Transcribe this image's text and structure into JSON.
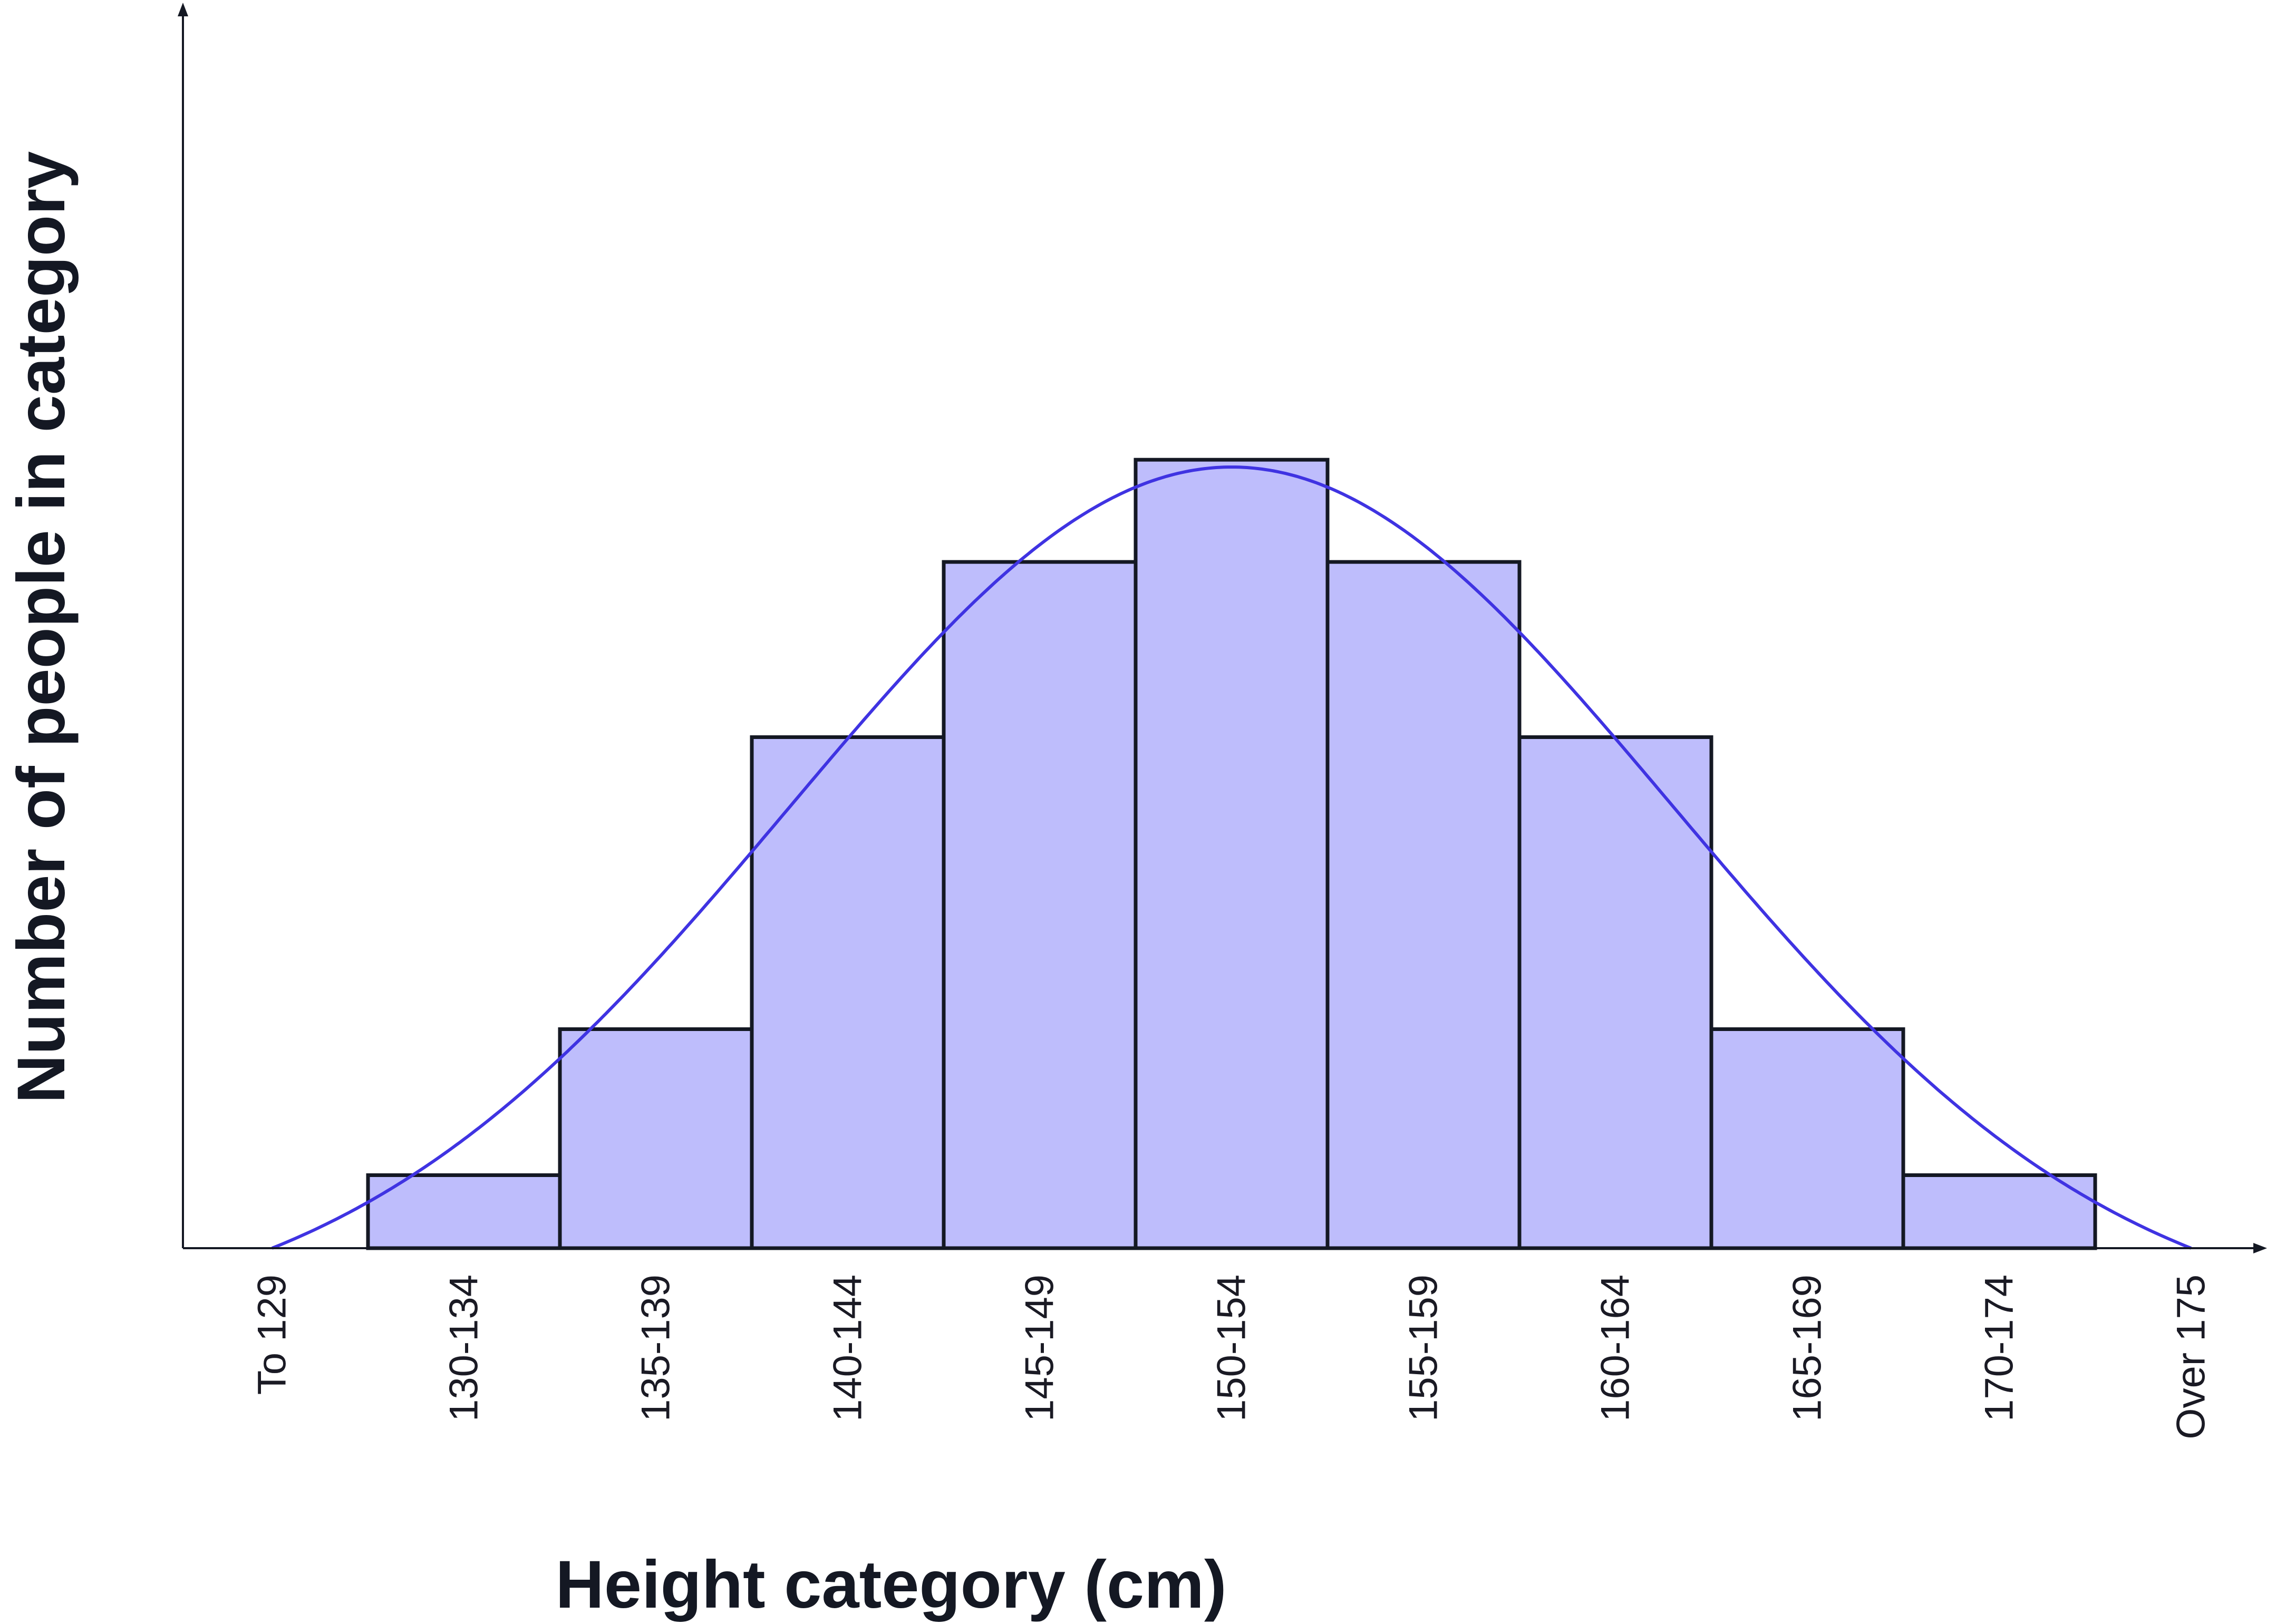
{
  "chart_data": {
    "type": "bar",
    "xlabel": "Height category (cm)",
    "ylabel": "Number of people in category",
    "categories": [
      "To 129",
      "130-134",
      "135-139",
      "140-144",
      "145-149",
      "150-154",
      "155-159",
      "160-164",
      "165-169",
      "170-174",
      "Over 175"
    ],
    "series": [
      {
        "values": [
          0,
          1,
          3,
          7,
          9.4,
          10.8,
          9.4,
          7,
          3,
          1,
          0
        ]
      }
    ],
    "curve": {
      "type": "line",
      "description_shape": "normal",
      "mean_category_index": 5,
      "peak_value": 10.7,
      "sd_in_categories": 2.3
    },
    "ylim": [
      0,
      13.6
    ],
    "y_ticks_shown": false,
    "grid": false,
    "legend": "none",
    "colors": {
      "bar_fill": "#bebdfc",
      "bar_stroke": "#141823",
      "curve": "#3f33e2",
      "axis": "#141823",
      "text": "#141823"
    }
  }
}
